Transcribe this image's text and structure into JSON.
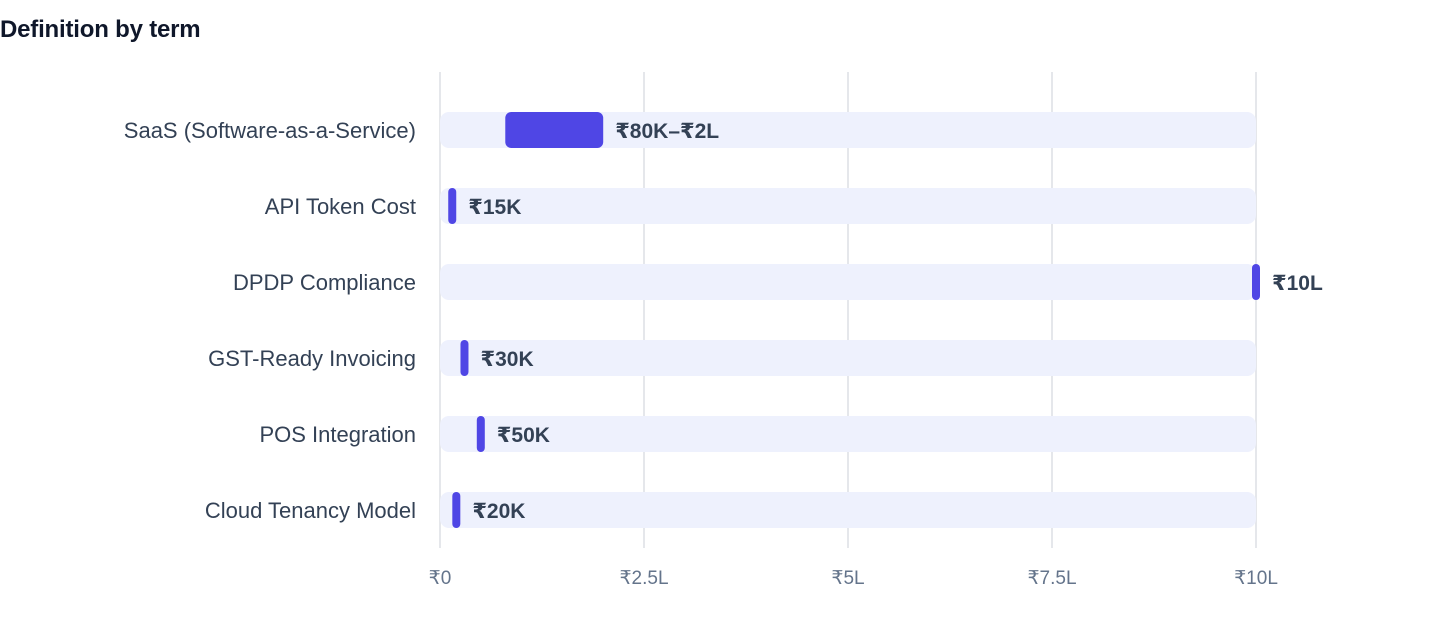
{
  "page": {
    "title": "Definition by term"
  },
  "colors": {
    "track": "#eef1fd",
    "bar": "#4f46e5",
    "grid": "#e5e7eb"
  },
  "chart_data": {
    "type": "bar",
    "orientation": "horizontal",
    "title": "Definition by term",
    "xlabel": "",
    "ylabel": "",
    "xlim": [
      0,
      1000000
    ],
    "grid": true,
    "ticks": [
      {
        "value": 0,
        "label": "₹0"
      },
      {
        "value": 250000,
        "label": "₹2.5L"
      },
      {
        "value": 500000,
        "label": "₹5L"
      },
      {
        "value": 750000,
        "label": "₹7.5L"
      },
      {
        "value": 1000000,
        "label": "₹10L"
      }
    ],
    "categories": [
      "SaaS (Software-as-a-Service)",
      "API Token Cost",
      "DPDP Compliance",
      "GST-Ready Invoicing",
      "POS Integration",
      "Cloud Tenancy Model"
    ],
    "ranges": [
      {
        "low": 80000,
        "high": 200000,
        "label": "₹80K–₹2L"
      },
      {
        "low": 15000,
        "high": 15000,
        "label": "₹15K"
      },
      {
        "low": 1000000,
        "high": 1000000,
        "label": "₹10L"
      },
      {
        "low": 30000,
        "high": 30000,
        "label": "₹30K"
      },
      {
        "low": 50000,
        "high": 50000,
        "label": "₹50K"
      },
      {
        "low": 20000,
        "high": 20000,
        "label": "₹20K"
      }
    ]
  }
}
